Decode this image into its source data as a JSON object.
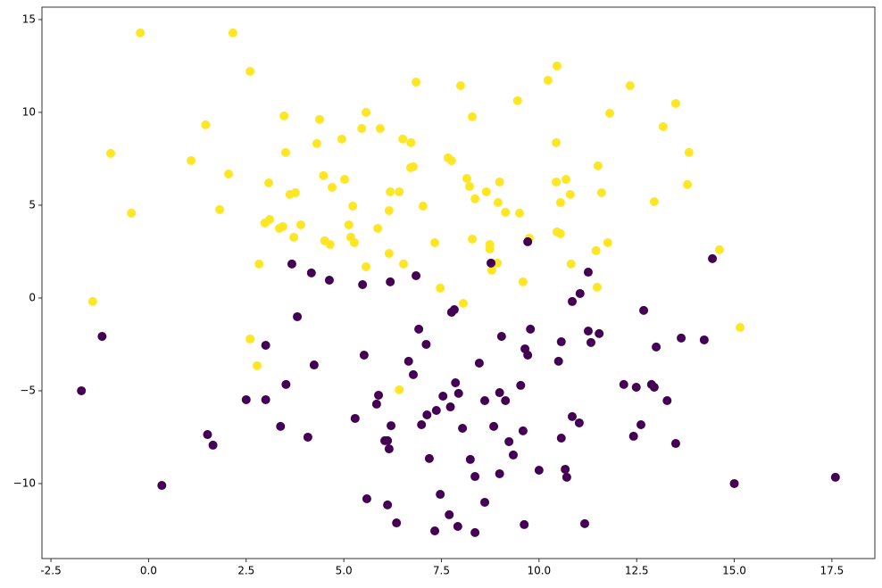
{
  "chart_data": {
    "type": "scatter",
    "xlim": [
      -2.73,
      18.6
    ],
    "ylim": [
      -14.04,
      15.67
    ],
    "xticks": [
      -2.5,
      {
        "value": 0,
        "label": "0.0"
      },
      2.5,
      {
        "value": 5,
        "label": "5.0"
      },
      7.5,
      {
        "value": 10,
        "label": "10.0"
      },
      12.5,
      {
        "value": 15,
        "label": "15.0"
      },
      17.5
    ],
    "yticks": [
      {
        "value": -10,
        "label": "−10"
      },
      {
        "value": -5,
        "label": "−5"
      },
      0,
      5,
      10,
      15
    ],
    "series": [
      {
        "color": "#fde725",
        "x": [
          -0.21,
          2.16,
          2.6,
          -0.97,
          1.46,
          1.09,
          -0.44,
          2.05,
          1.82,
          -1.43,
          3.47,
          4.38,
          4.31,
          4.95,
          5.57,
          5.46,
          5.93,
          6.51,
          6.72,
          6.85,
          7.99,
          8.29,
          9.45,
          10.23,
          10.46,
          10.44,
          12.33,
          13.18,
          13.5,
          11.81,
          13.84,
          13.8,
          12.95,
          11.51,
          11.6,
          10.69,
          10.44,
          10.8,
          10.55,
          11.76,
          11.46,
          11.49,
          14.62,
          15.15,
          10.46,
          10.55,
          10.82,
          9.59,
          9.5,
          9.14,
          8.99,
          8.95,
          8.65,
          8.15,
          8.22,
          8.36,
          8.29,
          8.74,
          8.74,
          8.79,
          8.93,
          9.75,
          7.67,
          7.76,
          6.78,
          6.71,
          7.03,
          7.33,
          7.47,
          8.06,
          6.42,
          6.19,
          6.16,
          5.87,
          6.16,
          6.53,
          5.57,
          5.23,
          5.13,
          5.18,
          5.27,
          5.02,
          4.7,
          4.48,
          4.51,
          4.65,
          3.51,
          3.08,
          3.62,
          3.76,
          3.1,
          2.98,
          3.35,
          3.44,
          3.9,
          3.72,
          2.83,
          2.6,
          2.78,
          6.42
        ],
        "y": [
          14.28,
          14.28,
          12.21,
          7.79,
          9.33,
          7.4,
          4.57,
          6.68,
          4.76,
          -0.19,
          9.81,
          9.62,
          8.32,
          8.56,
          10.0,
          9.13,
          9.13,
          8.56,
          8.37,
          11.63,
          11.44,
          9.76,
          10.63,
          11.73,
          12.5,
          8.37,
          11.44,
          9.23,
          10.48,
          9.95,
          7.84,
          6.11,
          5.19,
          7.12,
          5.67,
          6.39,
          6.25,
          5.58,
          5.14,
          2.98,
          2.55,
          0.58,
          2.6,
          -1.59,
          3.56,
          3.46,
          1.83,
          0.87,
          4.57,
          4.62,
          6.25,
          5.14,
          5.72,
          6.44,
          6.01,
          5.34,
          3.17,
          2.88,
          2.64,
          1.49,
          1.88,
          3.22,
          7.55,
          7.4,
          7.07,
          7.02,
          4.95,
          2.98,
          0.53,
          -0.29,
          5.72,
          5.72,
          4.71,
          3.75,
          2.4,
          1.83,
          1.68,
          4.95,
          3.94,
          3.27,
          2.98,
          6.39,
          5.96,
          6.59,
          3.08,
          2.88,
          7.84,
          6.2,
          5.58,
          5.67,
          4.23,
          4.04,
          3.75,
          3.85,
          3.94,
          3.27,
          1.83,
          -2.21,
          -3.65,
          -4.95
        ]
      },
      {
        "color": "#440154",
        "x": [
          -1.72,
          -1.19,
          0.34,
          1.51,
          1.65,
          2.5,
          3.0,
          3.0,
          3.38,
          3.52,
          3.67,
          3.81,
          4.08,
          4.17,
          4.24,
          4.63,
          5.48,
          5.29,
          5.52,
          5.59,
          5.84,
          5.89,
          6.05,
          6.12,
          6.12,
          6.16,
          6.19,
          6.21,
          6.35,
          6.85,
          6.66,
          6.78,
          6.92,
          7.11,
          6.99,
          7.13,
          7.19,
          7.33,
          7.37,
          7.54,
          7.47,
          7.7,
          7.73,
          7.76,
          7.83,
          7.86,
          7.92,
          7.94,
          8.04,
          8.24,
          8.36,
          8.36,
          8.47,
          8.61,
          8.61,
          8.77,
          8.84,
          8.99,
          8.99,
          9.04,
          9.14,
          9.23,
          9.34,
          9.53,
          9.59,
          9.62,
          9.64,
          9.71,
          9.71,
          9.78,
          10.0,
          10.5,
          10.57,
          10.57,
          10.67,
          10.71,
          10.85,
          10.85,
          11.03,
          11.05,
          11.17,
          11.26,
          11.26,
          11.33,
          11.54,
          12.17,
          12.42,
          12.49,
          12.61,
          12.68,
          12.88,
          12.95,
          13.0,
          13.28,
          13.5,
          13.64,
          14.23,
          14.44,
          15.0,
          17.59
        ],
        "y": [
          -5.0,
          -2.07,
          -10.1,
          -7.36,
          -7.93,
          -5.48,
          -2.55,
          -5.48,
          -6.92,
          -4.66,
          1.83,
          -1.01,
          -7.5,
          1.35,
          -3.61,
          0.96,
          0.72,
          -6.49,
          -3.08,
          -10.82,
          -5.72,
          -5.24,
          -7.69,
          -7.69,
          -11.15,
          -8.13,
          0.87,
          -6.88,
          -12.12,
          1.2,
          -3.41,
          -4.13,
          -1.68,
          -2.5,
          -6.83,
          -6.3,
          -8.65,
          -12.55,
          -6.06,
          -5.29,
          -10.58,
          -11.68,
          -5.87,
          -0.77,
          -0.63,
          -4.57,
          -12.31,
          -5.14,
          -7.02,
          -8.7,
          -9.62,
          -12.64,
          -3.51,
          -5.53,
          -11.01,
          1.88,
          -6.92,
          -9.47,
          -5.1,
          -2.07,
          -5.53,
          -7.74,
          -8.46,
          -4.71,
          -7.16,
          -12.21,
          -2.74,
          -3.08,
          3.03,
          -1.68,
          -9.28,
          -3.41,
          -2.36,
          -7.55,
          -9.23,
          -9.66,
          -0.19,
          -6.39,
          -6.73,
          0.24,
          -12.16,
          1.39,
          -1.78,
          -2.4,
          -1.92,
          -4.66,
          -7.45,
          -4.81,
          -6.83,
          -0.67,
          -4.66,
          -4.81,
          -2.64,
          -5.53,
          -7.84,
          -2.16,
          -2.26,
          2.12,
          -10.0,
          -9.66
        ]
      }
    ]
  }
}
